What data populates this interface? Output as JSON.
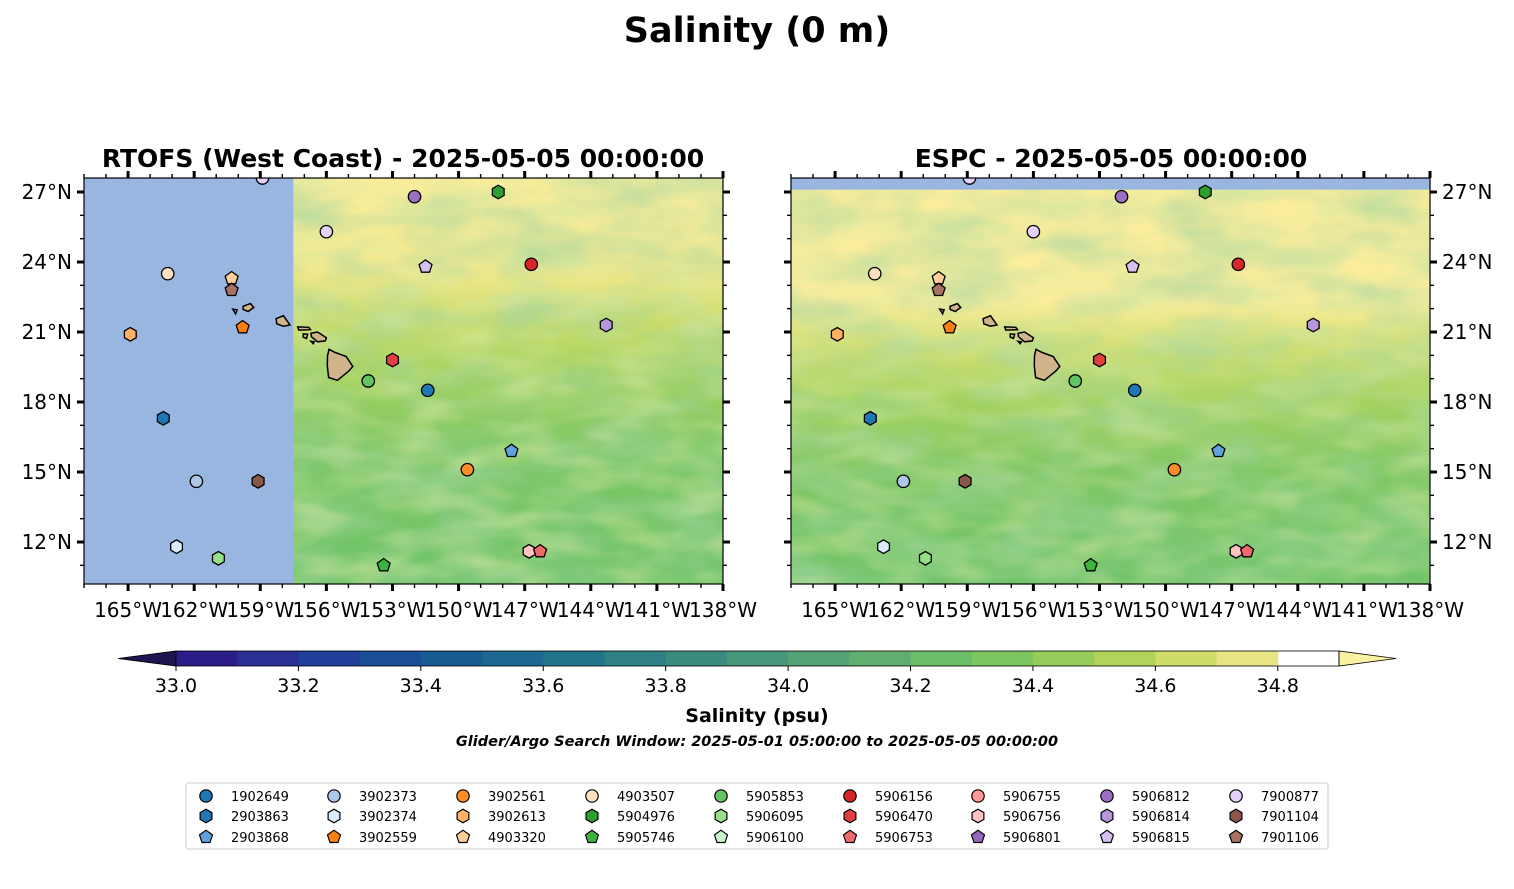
{
  "title": "Salinity (0 m)",
  "panels": [
    {
      "title": "RTOFS (West Coast) - 2025-05-05 00:00:00",
      "mask": "west-of-157.5",
      "lat_labels_side": "left"
    },
    {
      "title": "ESPC - 2025-05-05 00:00:00",
      "mask": "north-of-27.1",
      "lat_labels_side": "right"
    }
  ],
  "map_extent": {
    "lon": [
      -167,
      -138
    ],
    "lat": [
      10.2,
      27.6
    ]
  },
  "lon_ticks": [
    "165°W",
    "162°W",
    "159°W",
    "156°W",
    "153°W",
    "150°W",
    "147°W",
    "144°W",
    "141°W",
    "138°W"
  ],
  "lon_tick_values": [
    -165,
    -162,
    -159,
    -156,
    -153,
    -150,
    -147,
    -144,
    -141,
    -138
  ],
  "lat_ticks": [
    "12°N",
    "15°N",
    "18°N",
    "21°N",
    "24°N",
    "27°N"
  ],
  "lat_tick_values": [
    12,
    15,
    18,
    21,
    24,
    27
  ],
  "colorbar": {
    "label": "Salinity (psu)",
    "ticks": [
      "33.0",
      "33.2",
      "33.4",
      "33.6",
      "33.8",
      "34.0",
      "34.2",
      "34.4",
      "34.6",
      "34.8"
    ],
    "range": [
      32.9,
      34.9
    ],
    "step": 0.1,
    "extend": "both",
    "colors": [
      "#271e68",
      "#2c1e8a",
      "#2a2f96",
      "#1f3f9b",
      "#1a4f98",
      "#185c94",
      "#1c6890",
      "#24748c",
      "#2e8084",
      "#3a8c7e",
      "#47977a",
      "#54a276",
      "#62ad70",
      "#6cbd68",
      "#7cc65f",
      "#95cd5a",
      "#b2d35a",
      "#cfdd68",
      "#e9e585"
    ],
    "extend_low_color": "#1e1450",
    "extend_high_color": "#fbf1a2"
  },
  "subtitle": "Glider/Argo Search Window: 2025-05-01 05:00:00 to 2025-05-05 00:00:00",
  "colors": {
    "land": "#d2b48c",
    "masked": "#98b6e0",
    "sea_high": "#fbed9c"
  },
  "legend": {
    "columns": 9,
    "entries": [
      {
        "label": "1902649",
        "color": "#1f77b4",
        "marker": "circle"
      },
      {
        "label": "2903863",
        "color": "#1f77b4",
        "marker": "hexagon"
      },
      {
        "label": "2903868",
        "color": "#5fa2dd",
        "marker": "pentagon"
      },
      {
        "label": "3902373",
        "color": "#aec7e8",
        "marker": "circle"
      },
      {
        "label": "3902374",
        "color": "#dcebfa",
        "marker": "hexagon"
      },
      {
        "label": "3902559",
        "color": "#ff7f0e",
        "marker": "pentagon"
      },
      {
        "label": "3902561",
        "color": "#ff8c2a",
        "marker": "circle"
      },
      {
        "label": "3902613",
        "color": "#ffb062",
        "marker": "hexagon"
      },
      {
        "label": "4903320",
        "color": "#ffcf9a",
        "marker": "pentagon"
      },
      {
        "label": "4903507",
        "color": "#ffe0be",
        "marker": "circle"
      },
      {
        "label": "5904976",
        "color": "#2ca02c",
        "marker": "hexagon"
      },
      {
        "label": "5905746",
        "color": "#3cb33c",
        "marker": "pentagon"
      },
      {
        "label": "5905853",
        "color": "#62c462",
        "marker": "circle"
      },
      {
        "label": "5906095",
        "color": "#98df8a",
        "marker": "hexagon"
      },
      {
        "label": "5906100",
        "color": "#ccf5cc",
        "marker": "pentagon"
      },
      {
        "label": "5906156",
        "color": "#d62728",
        "marker": "circle"
      },
      {
        "label": "5906470",
        "color": "#e04040",
        "marker": "hexagon"
      },
      {
        "label": "5906753",
        "color": "#f06a6a",
        "marker": "pentagon"
      },
      {
        "label": "5906755",
        "color": "#ff9896",
        "marker": "circle"
      },
      {
        "label": "5906756",
        "color": "#ffc4c2",
        "marker": "hexagon"
      },
      {
        "label": "5906801",
        "color": "#9467bd",
        "marker": "pentagon"
      },
      {
        "label": "5906812",
        "color": "#9a6fc4",
        "marker": "circle"
      },
      {
        "label": "5906814",
        "color": "#b896dc",
        "marker": "hexagon"
      },
      {
        "label": "5906815",
        "color": "#d7bff0",
        "marker": "pentagon"
      },
      {
        "label": "7900877",
        "color": "#e5d2fa",
        "marker": "circle"
      },
      {
        "label": "7901104",
        "color": "#8c564b",
        "marker": "hexagon"
      },
      {
        "label": "7901106",
        "color": "#a67264",
        "marker": "pentagon"
      }
    ]
  },
  "floats": [
    {
      "id": "7900877",
      "lon": -158.9,
      "lat": 27.6
    },
    {
      "id": "5906812",
      "lon": -152.0,
      "lat": 26.8
    },
    {
      "id": "5904976",
      "lon": -148.2,
      "lat": 27.0
    },
    {
      "id": "7900877",
      "lon": -156.0,
      "lat": 25.3
    },
    {
      "id": "5906815",
      "lon": -151.5,
      "lat": 23.8
    },
    {
      "id": "5906156",
      "lon": -146.7,
      "lat": 23.9
    },
    {
      "id": "4903507",
      "lon": -163.2,
      "lat": 23.5
    },
    {
      "id": "4903320",
      "lon": -160.3,
      "lat": 23.3
    },
    {
      "id": "7901106",
      "lon": -160.3,
      "lat": 22.8
    },
    {
      "id": "5906814",
      "lon": -143.3,
      "lat": 21.3
    },
    {
      "id": "3902559",
      "lon": -159.8,
      "lat": 21.2
    },
    {
      "id": "3902613",
      "lon": -164.9,
      "lat": 20.9
    },
    {
      "id": "5906470",
      "lon": -153.0,
      "lat": 19.8
    },
    {
      "id": "5905853",
      "lon": -154.1,
      "lat": 18.9
    },
    {
      "id": "1902649",
      "lon": -151.4,
      "lat": 18.5
    },
    {
      "id": "2903863",
      "lon": -163.4,
      "lat": 17.3
    },
    {
      "id": "2903868",
      "lon": -147.6,
      "lat": 15.9
    },
    {
      "id": "3902561",
      "lon": -149.6,
      "lat": 15.1
    },
    {
      "id": "7901104",
      "lon": -159.1,
      "lat": 14.6
    },
    {
      "id": "3902373",
      "lon": -161.9,
      "lat": 14.6
    },
    {
      "id": "3902374",
      "lon": -162.8,
      "lat": 11.8
    },
    {
      "id": "5906756",
      "lon": -146.8,
      "lat": 11.6
    },
    {
      "id": "5906753",
      "lon": -146.3,
      "lat": 11.6
    },
    {
      "id": "5906095",
      "lon": -160.9,
      "lat": 11.3
    },
    {
      "id": "5905746",
      "lon": -153.4,
      "lat": 11.0
    }
  ]
}
